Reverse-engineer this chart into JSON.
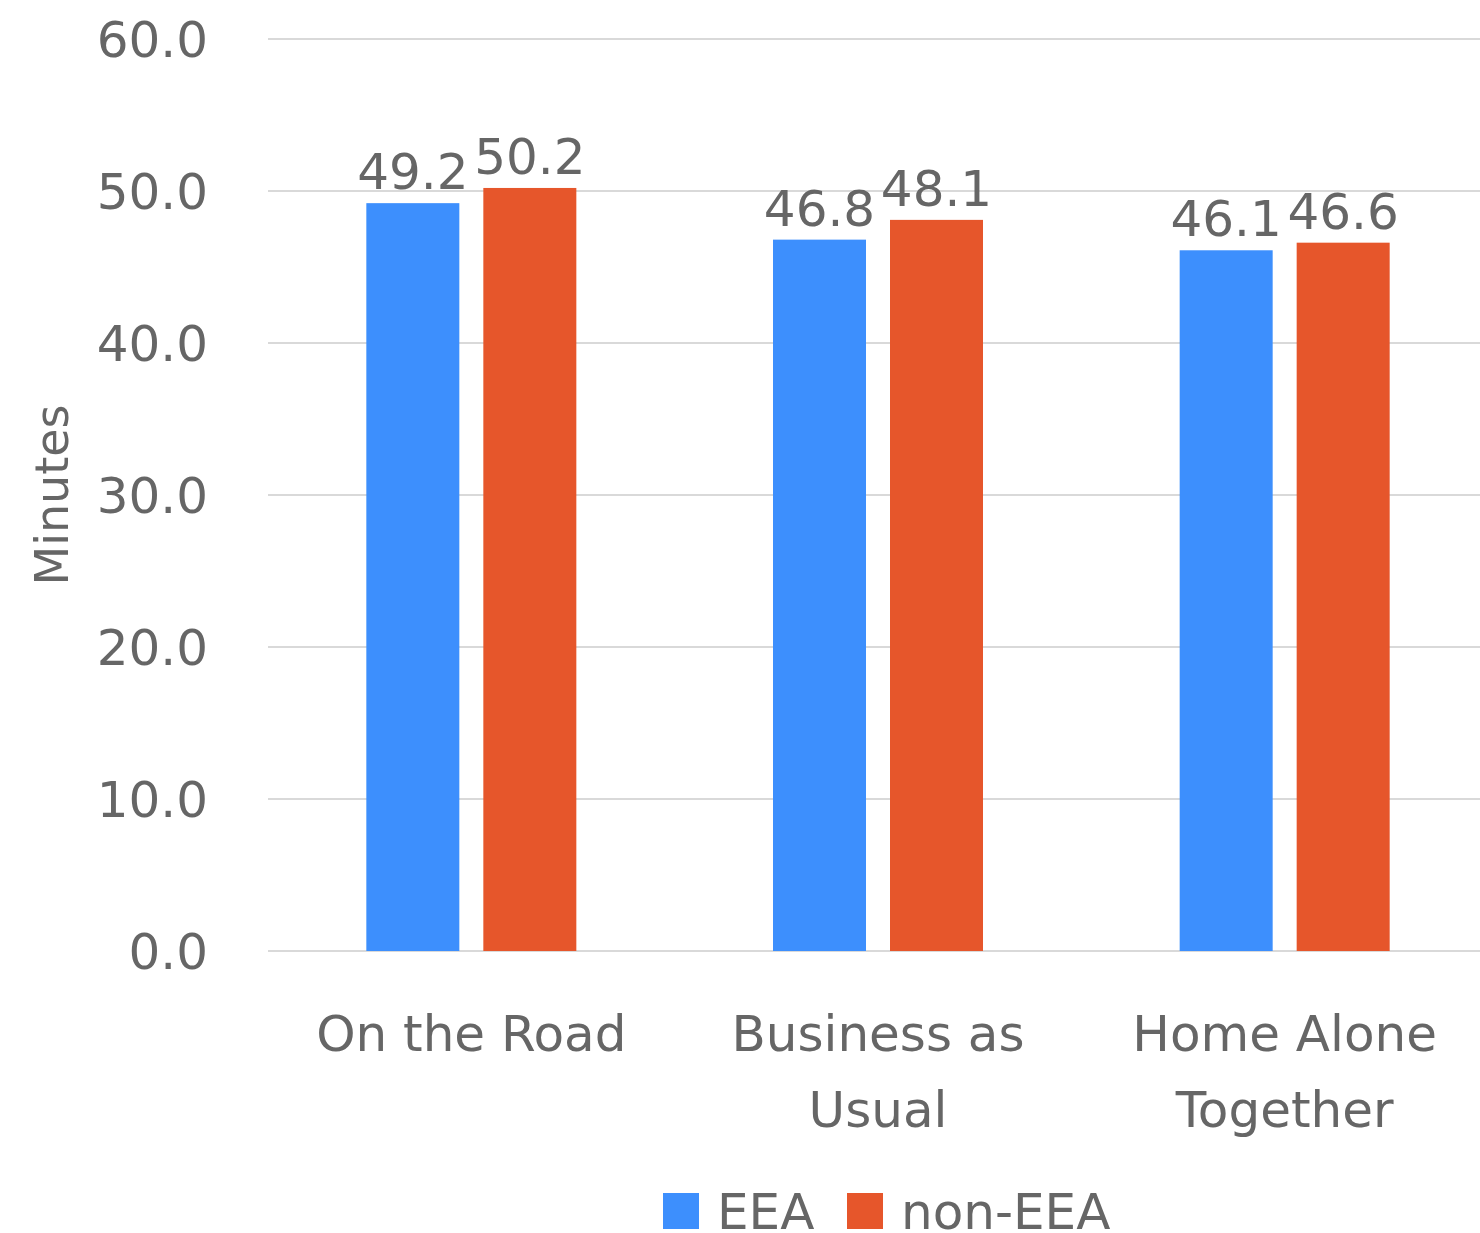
{
  "chart_data": {
    "type": "bar",
    "ylabel": "Minutes",
    "categories": [
      "On the Road",
      "Business as Usual",
      "Home Alone Together"
    ],
    "series": [
      {
        "name": "EEA",
        "color": "#3d8ffd",
        "values": [
          49.2,
          46.8,
          46.1
        ]
      },
      {
        "name": "non-EEA",
        "color": "#e6562b",
        "values": [
          50.2,
          48.1,
          46.6
        ]
      }
    ],
    "ylim": [
      0,
      60
    ],
    "yticks": [
      {
        "value": 0,
        "label": "0.0"
      },
      {
        "value": 10,
        "label": "10.0"
      },
      {
        "value": 20,
        "label": "20.0"
      },
      {
        "value": 30,
        "label": "30.0"
      },
      {
        "value": 40,
        "label": "40.0"
      },
      {
        "value": 50,
        "label": "50.0"
      },
      {
        "value": 60,
        "label": "60.0"
      }
    ],
    "grid": "y",
    "legend": "bottom",
    "data_labels": true
  }
}
